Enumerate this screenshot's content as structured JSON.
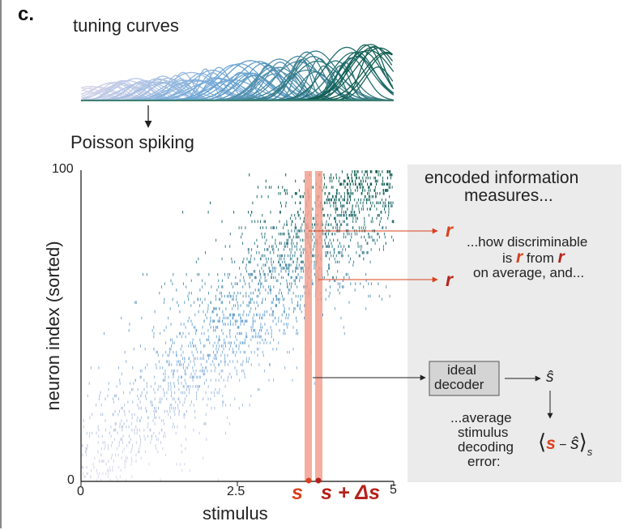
{
  "panel_label": "c.",
  "tuning_title": "tuning curves",
  "poisson_label": "Poisson spiking",
  "axes": {
    "ylabel": "neuron index (sorted)",
    "xlabel": "stimulus",
    "y_top": "100",
    "y_bottom": "0",
    "x_ticks": [
      "0",
      "2.5",
      "5"
    ],
    "s_label": "s",
    "s_ds_label": "s + Δs"
  },
  "info_box": {
    "title_line1": "encoded information",
    "title_line2": "measures...",
    "r_label_1": "r",
    "r_label_2": "r",
    "disc_line1": "...how discriminable",
    "disc_is": "is ",
    "disc_r1": "r",
    "disc_from": " from ",
    "disc_r2": "r",
    "disc_line3": "on average, and...",
    "decoder_line1": "ideal",
    "decoder_line2": "decoder",
    "s_hat": "ŝ",
    "avg_line1": "...average",
    "avg_line2": "stimulus",
    "avg_line3": "decoding",
    "avg_line4": "error:",
    "err_open": "⟨",
    "err_s": "s",
    "err_minus": " − ",
    "err_shat": "ŝ",
    "err_close": "⟩",
    "err_sub": "s"
  },
  "colors": {
    "accent_red": "#d9411e",
    "dark_red": "#b5221b",
    "band": "#f2a08f",
    "box_bg": "#ebebeb",
    "decoder_bg": "#d4d4d4",
    "low_color": "#e0d9ec",
    "mid_color": "#6fa8d8",
    "high_color": "#0b5a4a"
  },
  "chart_data": {
    "type": "raster",
    "title": "",
    "xlabel": "stimulus",
    "ylabel": "neuron index (sorted)",
    "xlim": [
      0,
      5
    ],
    "ylim": [
      0,
      100
    ],
    "xticks": [
      0,
      2.5,
      5
    ],
    "n_neurons": 100,
    "n_tuning_curves": 100,
    "s_value": 3.6,
    "s_plus_ds_value": 3.78,
    "tuning_stimulus_range": [
      0,
      5
    ]
  }
}
